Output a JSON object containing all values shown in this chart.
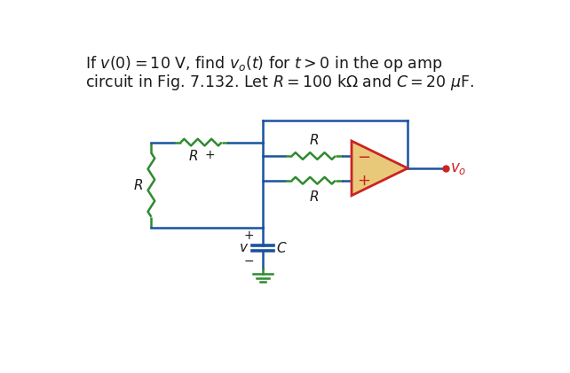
{
  "bg_color": "#ffffff",
  "wire_color": "#1a52a0",
  "green_color": "#2e8b2e",
  "opamp_fill": "#e8c97a",
  "opamp_edge": "#cc2222",
  "text_color": "#1a1a1a",
  "red_color": "#cc2222",
  "lw_wire": 1.8,
  "lw_res": 1.8,
  "figw": 6.42,
  "figh": 4.21,
  "dpi": 100
}
